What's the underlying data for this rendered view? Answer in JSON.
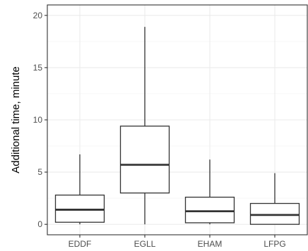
{
  "chart_data": {
    "type": "box",
    "title": "",
    "xlabel": "",
    "ylabel": "Additional time, minute",
    "ylim": [
      -1.0,
      21.0
    ],
    "yticks": [
      0,
      5,
      10,
      15,
      20
    ],
    "ytick_labels": [
      "0",
      "5",
      "10",
      "15",
      "20"
    ],
    "categories": [
      "EDDF",
      "EGLL",
      "EHAM",
      "LFPG"
    ],
    "boxes": [
      {
        "category": "EDDF",
        "whisker_low": 0.0,
        "q1": 0.2,
        "median": 1.4,
        "q3": 2.8,
        "whisker_high": 6.7
      },
      {
        "category": "EGLL",
        "whisker_low": 0.0,
        "q1": 3.0,
        "median": 5.7,
        "q3": 9.4,
        "whisker_high": 18.9
      },
      {
        "category": "EHAM",
        "whisker_low": 0.0,
        "q1": 0.15,
        "median": 1.25,
        "q3": 2.6,
        "whisker_high": 6.2
      },
      {
        "category": "LFPG",
        "whisker_low": 0.0,
        "q1": 0.0,
        "median": 0.9,
        "q3": 2.0,
        "whisker_high": 4.9
      }
    ],
    "grid": true,
    "theme": "bw",
    "colors": {
      "panel_border": "#333333",
      "grid_major": "#ebebeb",
      "grid_minor": "#f5f5f5",
      "box_line": "#333333",
      "box_fill": "#ffffff",
      "tick_label": "#4d4d4d",
      "axis_title": "#000000"
    }
  }
}
